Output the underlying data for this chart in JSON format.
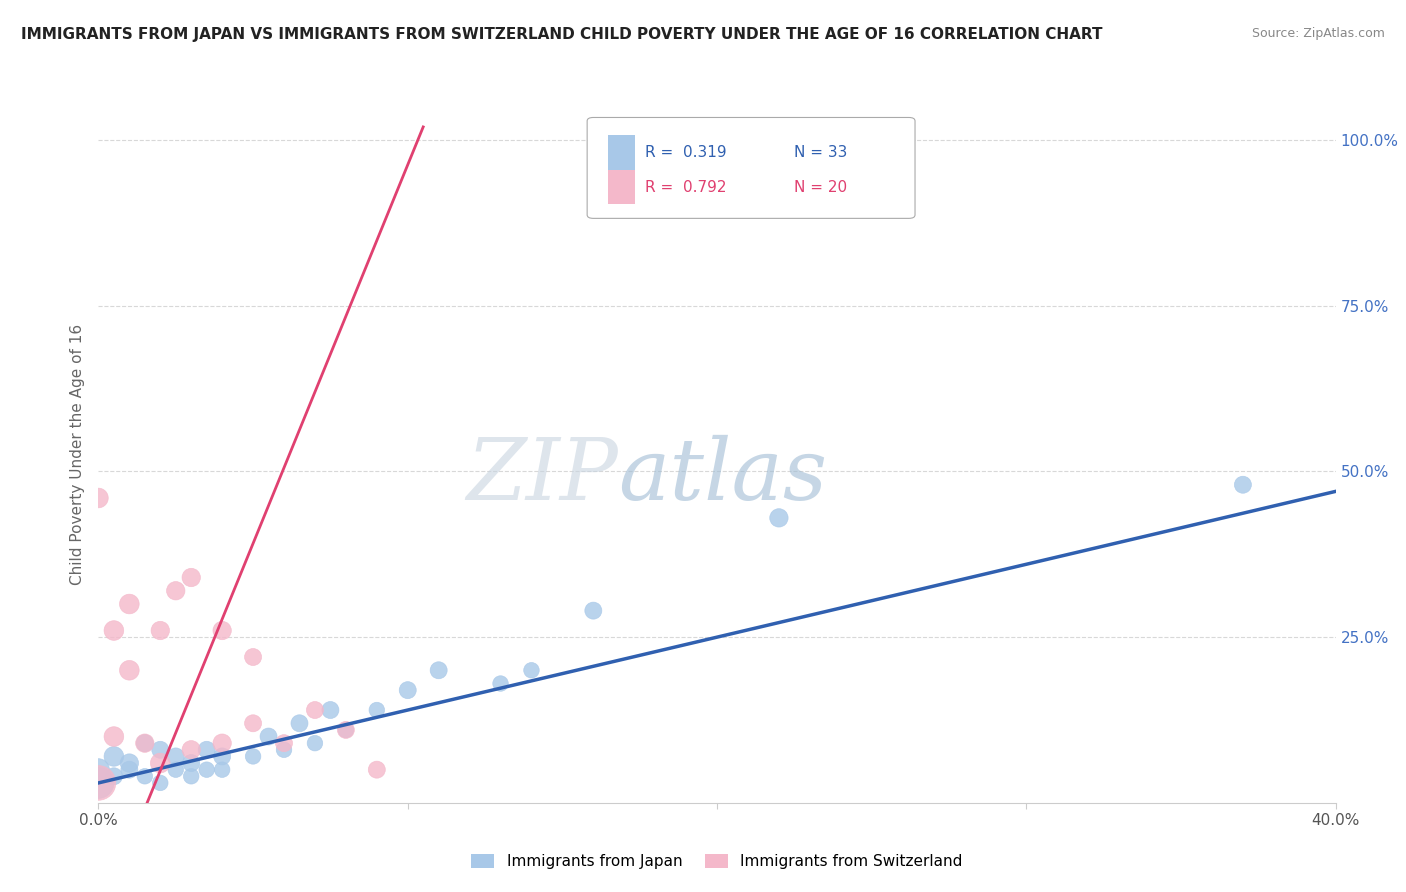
{
  "title": "IMMIGRANTS FROM JAPAN VS IMMIGRANTS FROM SWITZERLAND CHILD POVERTY UNDER THE AGE OF 16 CORRELATION CHART",
  "source": "Source: ZipAtlas.com",
  "ylabel": "Child Poverty Under the Age of 16",
  "xlim": [
    0,
    0.4
  ],
  "ylim": [
    0,
    1.05
  ],
  "watermark_zip": "ZIP",
  "watermark_atlas": "atlas",
  "japan_color": "#a8c8e8",
  "swiss_color": "#f4b8ca",
  "japan_line_color": "#3060b0",
  "swiss_line_color": "#e04070",
  "japan_scatter_x": [
    0.0,
    0.0,
    0.005,
    0.005,
    0.01,
    0.01,
    0.015,
    0.015,
    0.02,
    0.02,
    0.025,
    0.025,
    0.03,
    0.03,
    0.035,
    0.035,
    0.04,
    0.04,
    0.05,
    0.055,
    0.06,
    0.065,
    0.07,
    0.075,
    0.08,
    0.09,
    0.1,
    0.11,
    0.13,
    0.14,
    0.16,
    0.22,
    0.37
  ],
  "japan_scatter_y": [
    0.03,
    0.05,
    0.04,
    0.07,
    0.05,
    0.06,
    0.04,
    0.09,
    0.03,
    0.08,
    0.05,
    0.07,
    0.04,
    0.06,
    0.05,
    0.08,
    0.05,
    0.07,
    0.07,
    0.1,
    0.08,
    0.12,
    0.09,
    0.14,
    0.11,
    0.14,
    0.17,
    0.2,
    0.18,
    0.2,
    0.29,
    0.43,
    0.48
  ],
  "japan_scatter_size": [
    200,
    100,
    60,
    80,
    60,
    70,
    50,
    60,
    50,
    60,
    50,
    60,
    50,
    60,
    50,
    60,
    50,
    60,
    50,
    60,
    50,
    60,
    50,
    60,
    50,
    50,
    60,
    60,
    50,
    50,
    60,
    70,
    60
  ],
  "swiss_scatter_x": [
    0.0,
    0.0,
    0.005,
    0.005,
    0.01,
    0.01,
    0.015,
    0.02,
    0.02,
    0.025,
    0.03,
    0.03,
    0.04,
    0.04,
    0.05,
    0.05,
    0.06,
    0.07,
    0.08,
    0.09
  ],
  "swiss_scatter_y": [
    0.03,
    0.46,
    0.1,
    0.26,
    0.2,
    0.3,
    0.09,
    0.06,
    0.26,
    0.32,
    0.08,
    0.34,
    0.09,
    0.26,
    0.12,
    0.22,
    0.09,
    0.14,
    0.11,
    0.05
  ],
  "swiss_scatter_size": [
    250,
    80,
    80,
    80,
    80,
    80,
    70,
    80,
    70,
    70,
    70,
    70,
    70,
    70,
    60,
    60,
    60,
    60,
    60,
    60
  ],
  "background_color": "#ffffff",
  "grid_color": "#d8d8d8"
}
